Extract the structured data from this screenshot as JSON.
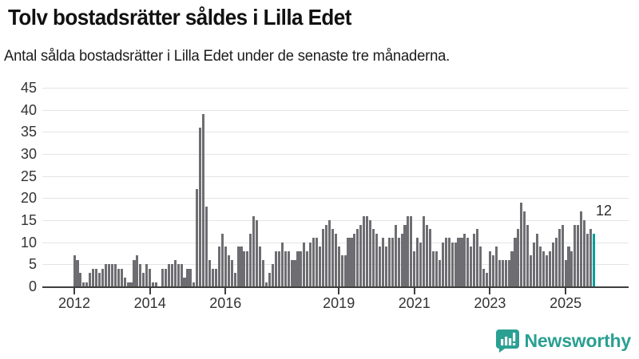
{
  "header": {
    "title": "Tolv bostadsrätter såldes i Lilla Edet",
    "subtitle": "Antal sålda bostadsrätter i Lilla Edet under de senaste tre månaderna."
  },
  "chart_data": {
    "type": "bar",
    "title": "Tolv bostadsrätter såldes i Lilla Edet",
    "subtitle": "Antal sålda bostadsrätter i Lilla Edet under de senaste tre månaderna.",
    "x_unit": "month",
    "x_start": "2012-01",
    "x_end": "2025-10",
    "values": [
      7,
      6,
      3,
      1,
      1,
      3,
      4,
      4,
      3,
      4,
      5,
      5,
      5,
      5,
      4,
      4,
      2,
      1,
      1,
      6,
      7,
      5,
      3,
      5,
      4,
      1,
      1,
      0,
      4,
      4,
      5,
      5,
      6,
      5,
      5,
      2,
      4,
      4,
      1,
      22,
      36,
      39,
      18,
      6,
      4,
      4,
      9,
      12,
      9,
      7,
      6,
      3,
      9,
      9,
      8,
      8,
      12,
      16,
      15,
      9,
      6,
      1,
      3,
      5,
      8,
      8,
      10,
      8,
      8,
      6,
      6,
      8,
      8,
      10,
      8,
      10,
      11,
      11,
      9,
      13,
      14,
      15,
      13,
      12,
      9,
      7,
      7,
      11,
      11,
      12,
      13,
      14,
      16,
      16,
      15,
      13,
      12,
      9,
      11,
      9,
      11,
      11,
      14,
      11,
      12,
      14,
      16,
      16,
      8,
      11,
      10,
      16,
      14,
      13,
      8,
      8,
      6,
      10,
      11,
      11,
      10,
      10,
      11,
      11,
      12,
      11,
      9,
      12,
      13,
      9,
      4,
      3,
      8,
      7,
      9,
      6,
      6,
      6,
      6,
      8,
      11,
      13,
      19,
      17,
      14,
      7,
      10,
      12,
      9,
      8,
      7,
      8,
      10,
      11,
      13,
      14,
      6,
      9,
      8,
      14,
      14,
      17,
      15,
      12,
      13,
      12
    ],
    "highlight_index": 165,
    "highlight_value": 12,
    "annotation": {
      "text": "12"
    },
    "bar_color": "#6e6d71",
    "highlight_color": "#00a09a",
    "ylim": [
      0,
      45
    ],
    "yticks": [
      0,
      5,
      10,
      15,
      20,
      25,
      30,
      35,
      40,
      45
    ],
    "xticks": [
      {
        "label": "2012",
        "month_index": 0
      },
      {
        "label": "2014",
        "month_index": 24
      },
      {
        "label": "2016",
        "month_index": 48
      },
      {
        "label": "2019",
        "month_index": 84
      },
      {
        "label": "2021",
        "month_index": 108
      },
      {
        "label": "2023",
        "month_index": 132
      },
      {
        "label": "2025",
        "month_index": 156
      }
    ],
    "grid": "horizontal",
    "legend": "none"
  },
  "footer": {
    "logo_text": "Newsworthy",
    "logo_color": "#2aa092",
    "logo_icon": "bar-chart-speech-bubble-icon"
  }
}
